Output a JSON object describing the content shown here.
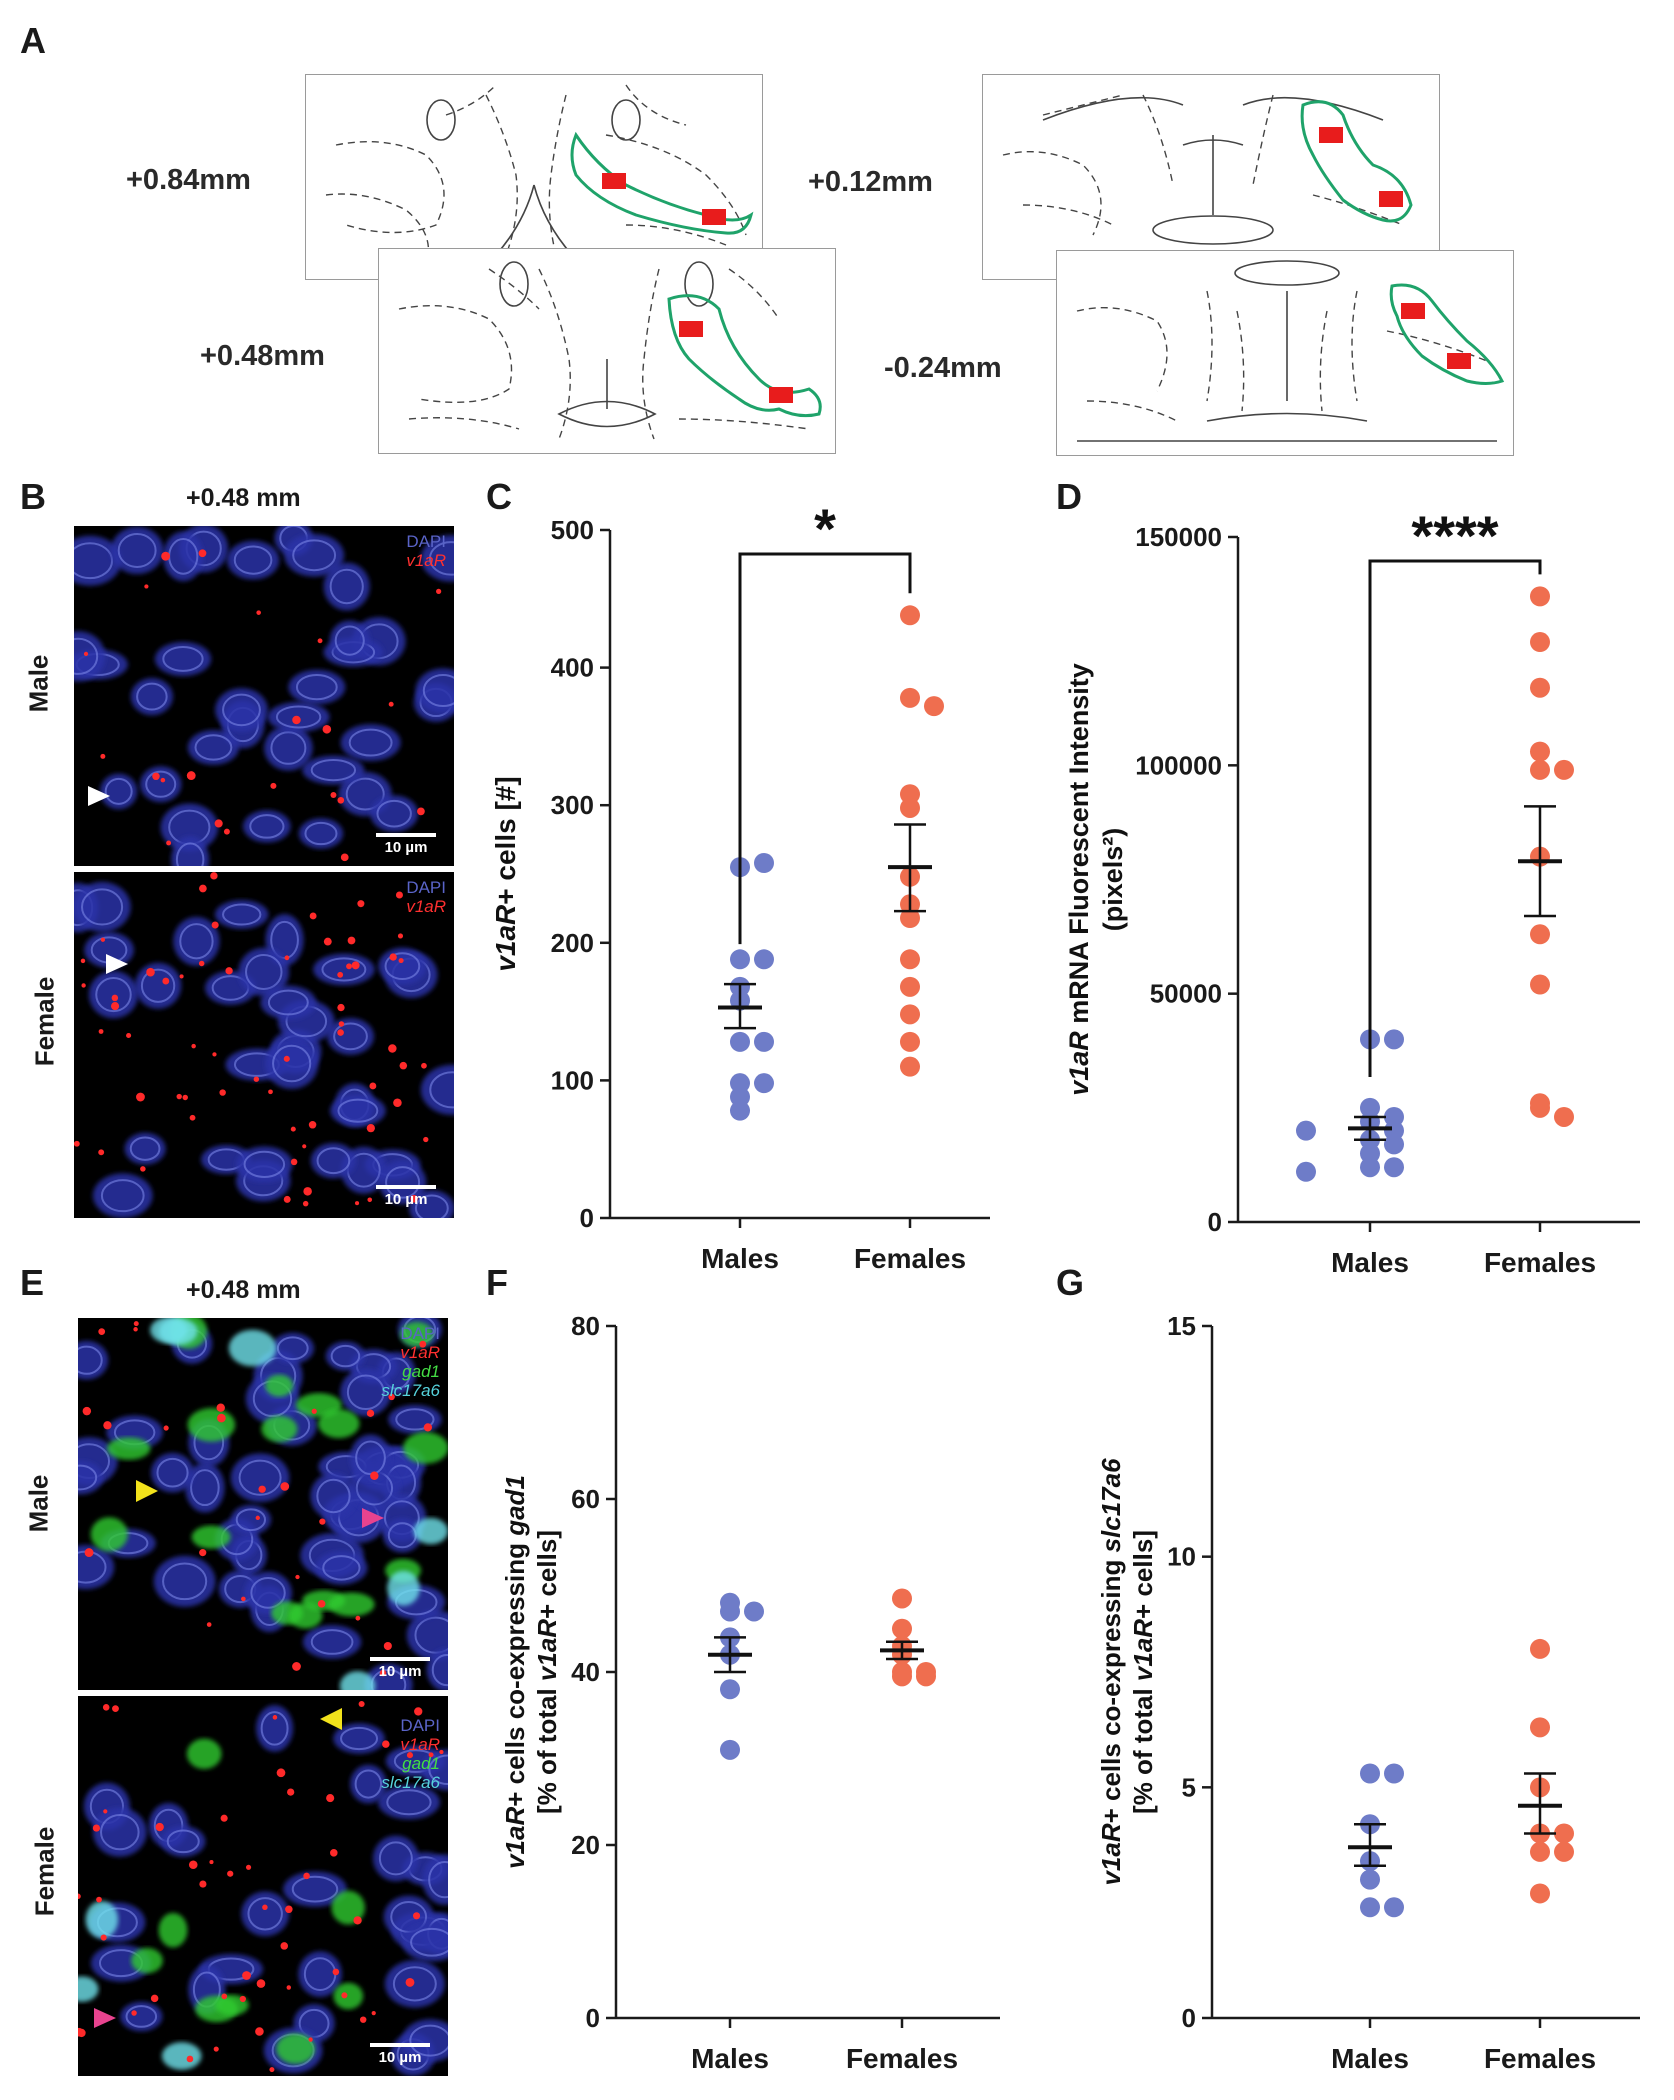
{
  "panels": {
    "A": {
      "label": "A",
      "sections": [
        "+0.84mm",
        "+0.48mm",
        "+0.12mm",
        "-0.24mm"
      ]
    },
    "B": {
      "label": "B",
      "title": "+0.48 mm",
      "rows": [
        "Male",
        "Female"
      ],
      "legend": [
        "DAPI",
        "v1aR"
      ],
      "scale": "10 µm"
    },
    "E": {
      "label": "E",
      "title": "+0.48 mm",
      "rows": [
        "Male",
        "Female"
      ],
      "legend": [
        "DAPI",
        "v1aR",
        "gad1",
        "slc17a6"
      ],
      "scale": "10 µm"
    },
    "C": {
      "label": "C"
    },
    "D": {
      "label": "D"
    },
    "F": {
      "label": "F"
    },
    "G": {
      "label": "G"
    }
  },
  "colors": {
    "males": "#6e7cc8",
    "females": "#ef6e4f",
    "dapi": "#4a55c8",
    "v1aR": "#ff2a2a",
    "gad1": "#2ecc2e",
    "slc17a6": "#35c9d6",
    "region_outline": "#1fa36a",
    "sample_box": "#e81c1c"
  },
  "chart_data": [
    {
      "panel": "C",
      "type": "scatter",
      "categories": [
        "Males",
        "Females"
      ],
      "ylabel_italic": "v1aR",
      "ylabel_rest": "+ cells [#]",
      "ylim": [
        0,
        500
      ],
      "yticks": [
        0,
        100,
        200,
        300,
        400,
        500
      ],
      "significance": "*",
      "series": [
        {
          "name": "Males",
          "values": [
            255,
            258,
            188,
            188,
            168,
            158,
            128,
            128,
            98,
            98,
            88,
            78
          ],
          "mean": 153,
          "sem_low": 138,
          "sem_high": 170
        },
        {
          "name": "Females",
          "values": [
            438,
            378,
            372,
            308,
            298,
            248,
            228,
            218,
            188,
            168,
            148,
            128,
            110
          ],
          "mean": 255,
          "sem_low": 223,
          "sem_high": 286
        }
      ]
    },
    {
      "panel": "D",
      "type": "scatter",
      "categories": [
        "Males",
        "Females"
      ],
      "ylabel_italic": "v1aR",
      "ylabel_rest": " mRNA Fluorescent Intensity",
      "ylabel_line2": "(pixels²)",
      "ylim": [
        0,
        150000
      ],
      "yticks": [
        0,
        50000,
        100000,
        150000
      ],
      "significance": "****",
      "series": [
        {
          "name": "Males",
          "values": [
            40000,
            40000,
            25000,
            23000,
            22000,
            20000,
            20000,
            18000,
            17000,
            15000,
            12000,
            12000,
            11000
          ],
          "mean": 20500,
          "sem_low": 18000,
          "sem_high": 23000
        },
        {
          "name": "Females",
          "values": [
            137000,
            127000,
            117000,
            103000,
            99000,
            99000,
            80000,
            63000,
            52000,
            26000,
            25000,
            23000
          ],
          "mean": 79000,
          "sem_low": 67000,
          "sem_high": 91000
        }
      ]
    },
    {
      "panel": "F",
      "type": "scatter",
      "categories": [
        "Males",
        "Females"
      ],
      "ylabel_line1_italic": "v1aR",
      "ylabel_line1_rest": "+ cells co-expressing ",
      "ylabel_line1_italic2": "gad1",
      "ylabel_line2_pre": "[% of total ",
      "ylabel_line2_italic": "v1aR",
      "ylabel_line2_post": "+ cells]",
      "ylim": [
        0,
        80
      ],
      "yticks": [
        0,
        20,
        40,
        60,
        80
      ],
      "series": [
        {
          "name": "Males",
          "values": [
            48,
            47,
            47,
            44,
            42,
            38,
            31
          ],
          "mean": 42,
          "sem_low": 40,
          "sem_high": 44
        },
        {
          "name": "Females",
          "values": [
            48.5,
            45,
            43,
            42,
            40,
            40,
            39.5,
            39.5
          ],
          "mean": 42.5,
          "sem_low": 41.5,
          "sem_high": 43.5
        }
      ]
    },
    {
      "panel": "G",
      "type": "scatter",
      "categories": [
        "Males",
        "Females"
      ],
      "ylabel_line1_italic": "v1aR",
      "ylabel_line1_rest": "+ cells co-expressing ",
      "ylabel_line1_italic2": "slc17a6",
      "ylabel_line2_pre": "[% of total ",
      "ylabel_line2_italic": "v1aR",
      "ylabel_line2_post": "+ cells]",
      "ylim": [
        0,
        15
      ],
      "yticks": [
        0,
        5,
        10,
        15
      ],
      "series": [
        {
          "name": "Males",
          "values": [
            5.3,
            5.3,
            4.2,
            3.4,
            2.4,
            2.4,
            3.0
          ],
          "mean": 3.7,
          "sem_low": 3.3,
          "sem_high": 4.2
        },
        {
          "name": "Females",
          "values": [
            8.0,
            6.3,
            5.0,
            4.0,
            4.0,
            3.6,
            3.6,
            2.7
          ],
          "mean": 4.6,
          "sem_low": 4.0,
          "sem_high": 5.3
        }
      ]
    }
  ]
}
